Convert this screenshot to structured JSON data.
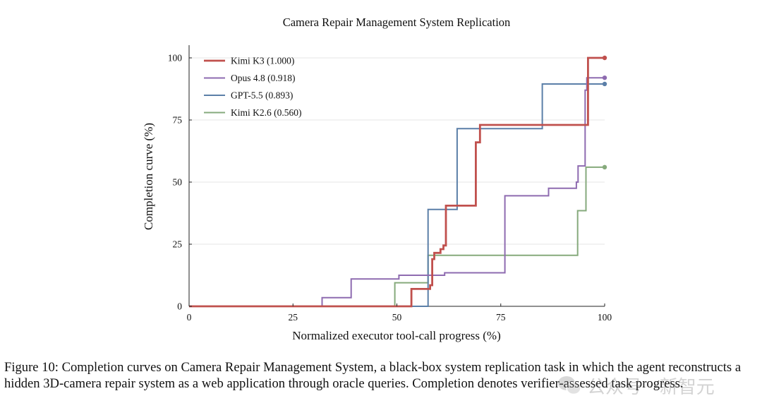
{
  "chart_data": {
    "type": "line",
    "title": "Camera Repair Management System Replication",
    "xlabel": "Normalized executor tool-call progress (%)",
    "ylabel": "Completion curve (%)",
    "xlim": [
      0,
      100
    ],
    "ylim": [
      0,
      105
    ],
    "xticks": [
      0,
      25,
      50,
      75,
      100
    ],
    "yticks": [
      0,
      25,
      50,
      75,
      100
    ],
    "grid": "horizontal",
    "legend": "top-left",
    "step": true,
    "series": [
      {
        "name": "Kimi K3 (1.000)",
        "color": "#c0504d",
        "points": [
          [
            0,
            0
          ],
          [
            53.5,
            0
          ],
          [
            53.5,
            7
          ],
          [
            58,
            7
          ],
          [
            58,
            8.5
          ],
          [
            58.5,
            8.5
          ],
          [
            58.5,
            19
          ],
          [
            59,
            19
          ],
          [
            59,
            21.5
          ],
          [
            60.5,
            21.5
          ],
          [
            60.5,
            23
          ],
          [
            61.2,
            23
          ],
          [
            61.2,
            24.5
          ],
          [
            61.8,
            24.5
          ],
          [
            61.8,
            40.5
          ],
          [
            69,
            40.5
          ],
          [
            69,
            66
          ],
          [
            70,
            66
          ],
          [
            70,
            73
          ],
          [
            96,
            73
          ],
          [
            96,
            100
          ],
          [
            100,
            100
          ]
        ]
      },
      {
        "name": "Opus 4.8 (0.918)",
        "color": "#8e6bb0",
        "points": [
          [
            0,
            0
          ],
          [
            32,
            0
          ],
          [
            32,
            3.5
          ],
          [
            39,
            3.5
          ],
          [
            39,
            11
          ],
          [
            50.5,
            11
          ],
          [
            50.5,
            12.5
          ],
          [
            61.5,
            12.5
          ],
          [
            61.5,
            13.5
          ],
          [
            76,
            13.5
          ],
          [
            76,
            44.5
          ],
          [
            86.5,
            44.5
          ],
          [
            86.5,
            47.5
          ],
          [
            93.2,
            47.5
          ],
          [
            93.2,
            50
          ],
          [
            93.6,
            50
          ],
          [
            93.6,
            56.5
          ],
          [
            95.3,
            56.5
          ],
          [
            95.3,
            87
          ],
          [
            95.7,
            87
          ],
          [
            95.7,
            92
          ],
          [
            100,
            92
          ]
        ]
      },
      {
        "name": "GPT-5.5 (0.893)",
        "color": "#5b7fa8",
        "points": [
          [
            0,
            0
          ],
          [
            57.5,
            0
          ],
          [
            57.5,
            39
          ],
          [
            64.5,
            39
          ],
          [
            64.5,
            71.5
          ],
          [
            85,
            71.5
          ],
          [
            85,
            89.5
          ],
          [
            100,
            89.5
          ]
        ]
      },
      {
        "name": "Kimi K2.6 (0.560)",
        "color": "#86aa7c",
        "points": [
          [
            0,
            0
          ],
          [
            49.5,
            0
          ],
          [
            49.5,
            9.5
          ],
          [
            57.5,
            9.5
          ],
          [
            57.5,
            20.5
          ],
          [
            93.5,
            20.5
          ],
          [
            93.5,
            38.5
          ],
          [
            95.5,
            38.5
          ],
          [
            95.5,
            56
          ],
          [
            100,
            56
          ]
        ]
      }
    ]
  },
  "caption": "Figure 10: Completion curves on Camera Repair Management System, a black-box system replication task in which the agent reconstructs a hidden 3D-camera repair system as a web application through oracle queries. Completion denotes verifier-assessed task progress.",
  "watermark": {
    "text": "公众号 · 新智元",
    "icon": "wechat-icon"
  }
}
